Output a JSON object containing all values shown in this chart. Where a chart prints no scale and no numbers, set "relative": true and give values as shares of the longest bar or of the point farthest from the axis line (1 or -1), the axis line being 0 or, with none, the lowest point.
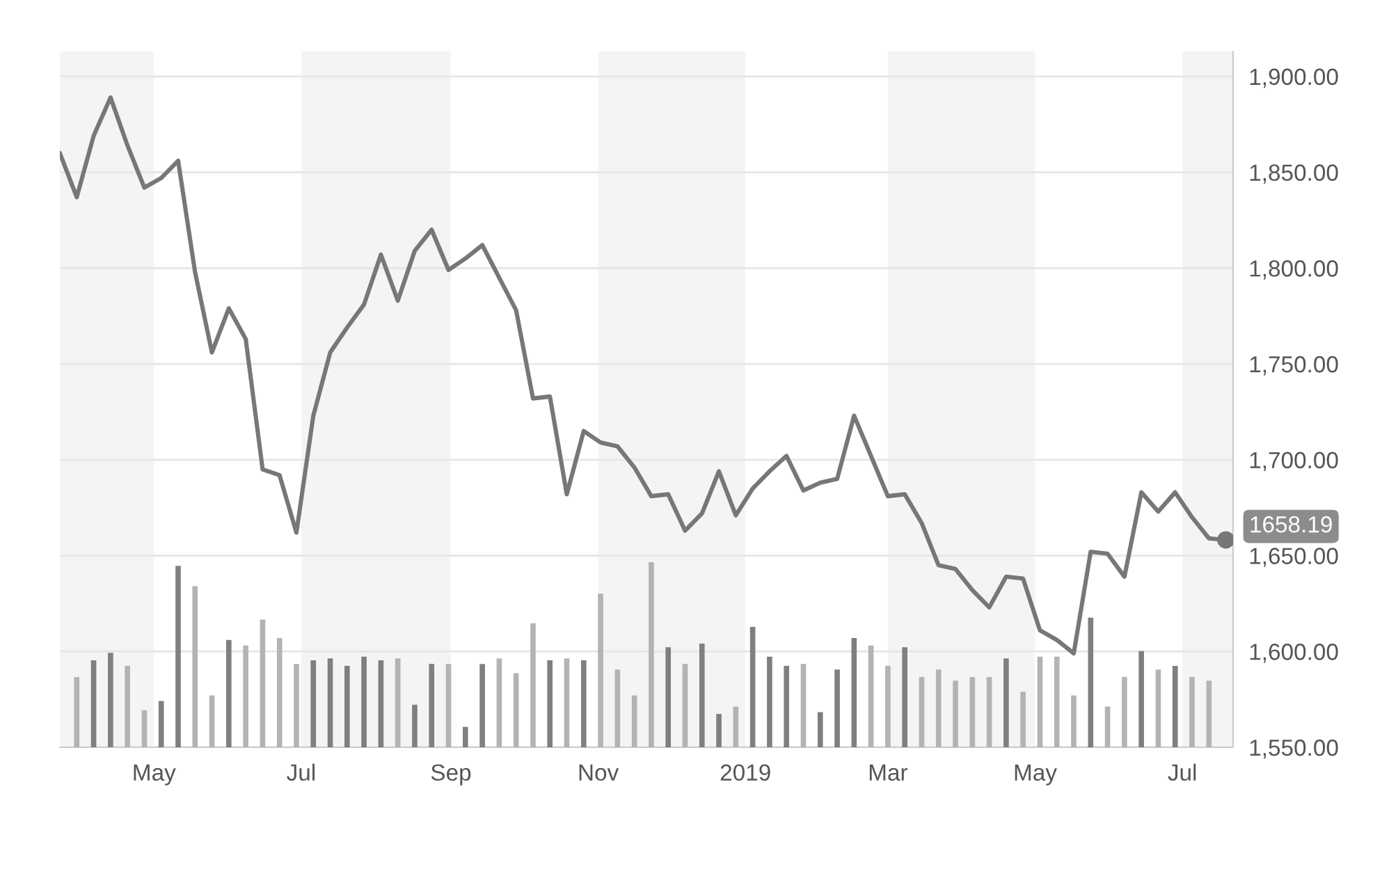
{
  "chart_data": [
    {
      "type": "line",
      "x": [
        "2018-03-23",
        "2018-03-30",
        "2018-04-06",
        "2018-04-13",
        "2018-04-20",
        "2018-04-27",
        "2018-05-04",
        "2018-05-11",
        "2018-05-18",
        "2018-05-25",
        "2018-06-01",
        "2018-06-08",
        "2018-06-15",
        "2018-06-22",
        "2018-06-29",
        "2018-07-06",
        "2018-07-13",
        "2018-07-20",
        "2018-07-27",
        "2018-08-03",
        "2018-08-10",
        "2018-08-17",
        "2018-08-24",
        "2018-08-31",
        "2018-09-07",
        "2018-09-14",
        "2018-09-21",
        "2018-09-28",
        "2018-10-05",
        "2018-10-12",
        "2018-10-19",
        "2018-10-26",
        "2018-11-02",
        "2018-11-09",
        "2018-11-16",
        "2018-11-23",
        "2018-11-30",
        "2018-12-07",
        "2018-12-14",
        "2018-12-21",
        "2018-12-28",
        "2019-01-04",
        "2019-01-11",
        "2019-01-18",
        "2019-01-25",
        "2019-02-01",
        "2019-02-08",
        "2019-02-15",
        "2019-02-22",
        "2019-03-01",
        "2019-03-08",
        "2019-03-15",
        "2019-03-22",
        "2019-03-29",
        "2019-04-05",
        "2019-04-12",
        "2019-04-19",
        "2019-04-26",
        "2019-05-03",
        "2019-05-10",
        "2019-05-17",
        "2019-05-24",
        "2019-05-31",
        "2019-06-07",
        "2019-06-14",
        "2019-06-21",
        "2019-06-28",
        "2019-07-05",
        "2019-07-12",
        "2019-07-19"
      ],
      "series": [
        {
          "color": "#777777",
          "values": [
            1860,
            1837,
            1869,
            1889,
            1864,
            1842,
            1847,
            1856,
            1798,
            1756,
            1779,
            1763,
            1695,
            1692,
            1662,
            1723,
            1756,
            1769,
            1781,
            1807,
            1783,
            1809,
            1820,
            1799,
            1805,
            1812,
            1795,
            1778,
            1732,
            1733,
            1682,
            1715,
            1709,
            1707,
            1696,
            1681,
            1682,
            1663,
            1672,
            1694,
            1671,
            1685,
            1694,
            1702,
            1684,
            1688,
            1690,
            1723,
            1702,
            1681,
            1682,
            1667,
            1645,
            1643,
            1632,
            1623,
            1639,
            1638,
            1611,
            1606,
            1599,
            1652,
            1651,
            1639,
            1683,
            1673,
            1683,
            1670,
            1659,
            1658.19
          ]
        }
      ],
      "xlim": [
        "2018-03-23",
        "2019-07-22"
      ],
      "xticks": [
        {
          "value": "2018-05-01",
          "label": "May"
        },
        {
          "value": "2018-07-01",
          "label": "Jul"
        },
        {
          "value": "2018-09-01",
          "label": "Sep"
        },
        {
          "value": "2018-11-01",
          "label": "Nov"
        },
        {
          "value": "2019-01-01",
          "label": "2019"
        },
        {
          "value": "2019-03-01",
          "label": "Mar"
        },
        {
          "value": "2019-05-01",
          "label": "May"
        },
        {
          "value": "2019-07-01",
          "label": "Jul"
        }
      ],
      "ylim": [
        1550,
        1913
      ],
      "yticks": [
        {
          "value": 1550,
          "label": "1,550.00"
        },
        {
          "value": 1600,
          "label": "1,600.00"
        },
        {
          "value": 1650,
          "label": "1,650.00"
        },
        {
          "value": 1700,
          "label": "1,700.00"
        },
        {
          "value": 1750,
          "label": "1,750.00"
        },
        {
          "value": 1800,
          "label": "1,800.00"
        },
        {
          "value": 1850,
          "label": "1,850.00"
        },
        {
          "value": 1900,
          "label": "1,900.00"
        }
      ],
      "grid": "y",
      "legend": false,
      "line_style": "solid",
      "bands": [
        {
          "axis": "x",
          "from": "2018-03-23",
          "to": "2018-05-01",
          "color": "#f4f4f4"
        },
        {
          "axis": "x",
          "from": "2018-07-01",
          "to": "2018-09-01",
          "color": "#f4f4f4"
        },
        {
          "axis": "x",
          "from": "2018-11-01",
          "to": "2019-01-01",
          "color": "#f4f4f4"
        },
        {
          "axis": "x",
          "from": "2019-03-01",
          "to": "2019-05-01",
          "color": "#f4f4f4"
        },
        {
          "axis": "x",
          "from": "2019-07-01",
          "to": "2019-07-22",
          "color": "#f4f4f4"
        }
      ],
      "annotations": [
        {
          "text": "1658.19",
          "x": "2019-07-19",
          "y": 1658.19
        }
      ]
    },
    {
      "type": "bar",
      "relative": true,
      "tick_labels": false,
      "x": [
        "2018-03-30",
        "2018-04-06",
        "2018-04-13",
        "2018-04-20",
        "2018-04-27",
        "2018-05-04",
        "2018-05-11",
        "2018-05-18",
        "2018-05-25",
        "2018-06-01",
        "2018-06-08",
        "2018-06-15",
        "2018-06-22",
        "2018-06-29",
        "2018-07-06",
        "2018-07-13",
        "2018-07-20",
        "2018-07-27",
        "2018-08-03",
        "2018-08-10",
        "2018-08-17",
        "2018-08-24",
        "2018-08-31",
        "2018-09-07",
        "2018-09-14",
        "2018-09-21",
        "2018-09-28",
        "2018-10-05",
        "2018-10-12",
        "2018-10-19",
        "2018-10-26",
        "2018-11-02",
        "2018-11-09",
        "2018-11-16",
        "2018-11-23",
        "2018-11-30",
        "2018-12-07",
        "2018-12-14",
        "2018-12-21",
        "2018-12-28",
        "2019-01-04",
        "2019-01-11",
        "2019-01-18",
        "2019-01-25",
        "2019-02-01",
        "2019-02-08",
        "2019-02-15",
        "2019-02-22",
        "2019-03-01",
        "2019-03-08",
        "2019-03-15",
        "2019-03-22",
        "2019-03-29",
        "2019-04-05",
        "2019-04-12",
        "2019-04-19",
        "2019-04-26",
        "2019-05-03",
        "2019-05-10",
        "2019-05-17",
        "2019-05-24",
        "2019-05-31",
        "2019-06-07",
        "2019-06-14",
        "2019-06-21",
        "2019-06-28",
        "2019-07-05",
        "2019-07-12"
      ],
      "values": [
        0.38,
        0.47,
        0.51,
        0.44,
        0.2,
        0.25,
        0.98,
        0.87,
        0.28,
        0.58,
        0.55,
        0.69,
        0.59,
        0.45,
        0.47,
        0.48,
        0.44,
        0.49,
        0.47,
        0.48,
        0.23,
        0.45,
        0.45,
        0.11,
        0.45,
        0.48,
        0.4,
        0.67,
        0.47,
        0.48,
        0.47,
        0.83,
        0.42,
        0.28,
        1,
        0.54,
        0.45,
        0.56,
        0.18,
        0.22,
        0.65,
        0.49,
        0.44,
        0.45,
        0.19,
        0.42,
        0.59,
        0.55,
        0.44,
        0.54,
        0.38,
        0.42,
        0.36,
        0.38,
        0.38,
        0.48,
        0.3,
        0.49,
        0.49,
        0.28,
        0.7,
        0.22,
        0.38,
        0.52,
        0.42,
        0.44,
        0.38,
        0.36
      ],
      "colors": [
        "#b3b3b3",
        "#7f7f7f",
        "#7f7f7f",
        "#b3b3b3",
        "#b3b3b3",
        "#7f7f7f",
        "#7f7f7f",
        "#b3b3b3",
        "#b3b3b3",
        "#7f7f7f",
        "#b3b3b3",
        "#b3b3b3",
        "#b3b3b3",
        "#b3b3b3",
        "#7f7f7f",
        "#7f7f7f",
        "#7f7f7f",
        "#7f7f7f",
        "#7f7f7f",
        "#b3b3b3",
        "#7f7f7f",
        "#7f7f7f",
        "#b3b3b3",
        "#7f7f7f",
        "#7f7f7f",
        "#b3b3b3",
        "#b3b3b3",
        "#b3b3b3",
        "#7f7f7f",
        "#b3b3b3",
        "#7f7f7f",
        "#b3b3b3",
        "#b3b3b3",
        "#b3b3b3",
        "#b3b3b3",
        "#7f7f7f",
        "#b3b3b3",
        "#7f7f7f",
        "#7f7f7f",
        "#b3b3b3",
        "#7f7f7f",
        "#7f7f7f",
        "#7f7f7f",
        "#b3b3b3",
        "#7f7f7f",
        "#7f7f7f",
        "#7f7f7f",
        "#b3b3b3",
        "#b3b3b3",
        "#7f7f7f",
        "#b3b3b3",
        "#b3b3b3",
        "#b3b3b3",
        "#b3b3b3",
        "#b3b3b3",
        "#7f7f7f",
        "#b3b3b3",
        "#b3b3b3",
        "#b3b3b3",
        "#b3b3b3",
        "#7f7f7f",
        "#b3b3b3",
        "#b3b3b3",
        "#7f7f7f",
        "#b3b3b3",
        "#7f7f7f",
        "#b3b3b3",
        "#b3b3b3"
      ],
      "xlim": [
        "2018-03-23",
        "2019-07-22"
      ]
    }
  ]
}
